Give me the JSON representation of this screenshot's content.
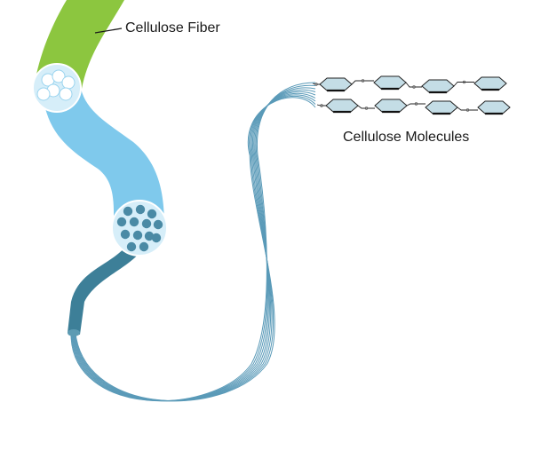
{
  "labels": {
    "fiber": "Cellulose Fiber",
    "molecules": "Cellulose Molecules"
  },
  "colors": {
    "fiber_green": "#8cc63f",
    "fiber_green_dark": "#6fa52c",
    "microfibril_blue": "#7fc9ec",
    "microfibril_blue_dark": "#5fb1d9",
    "elementary_fibril": "#3d7f98",
    "strand": "#5a9ab8",
    "cross_section_bg": "#d6eef9",
    "cross_section_dots": "#4a8aa5",
    "molecule_fill": "#c4dde6",
    "molecule_stroke": "#222222"
  }
}
